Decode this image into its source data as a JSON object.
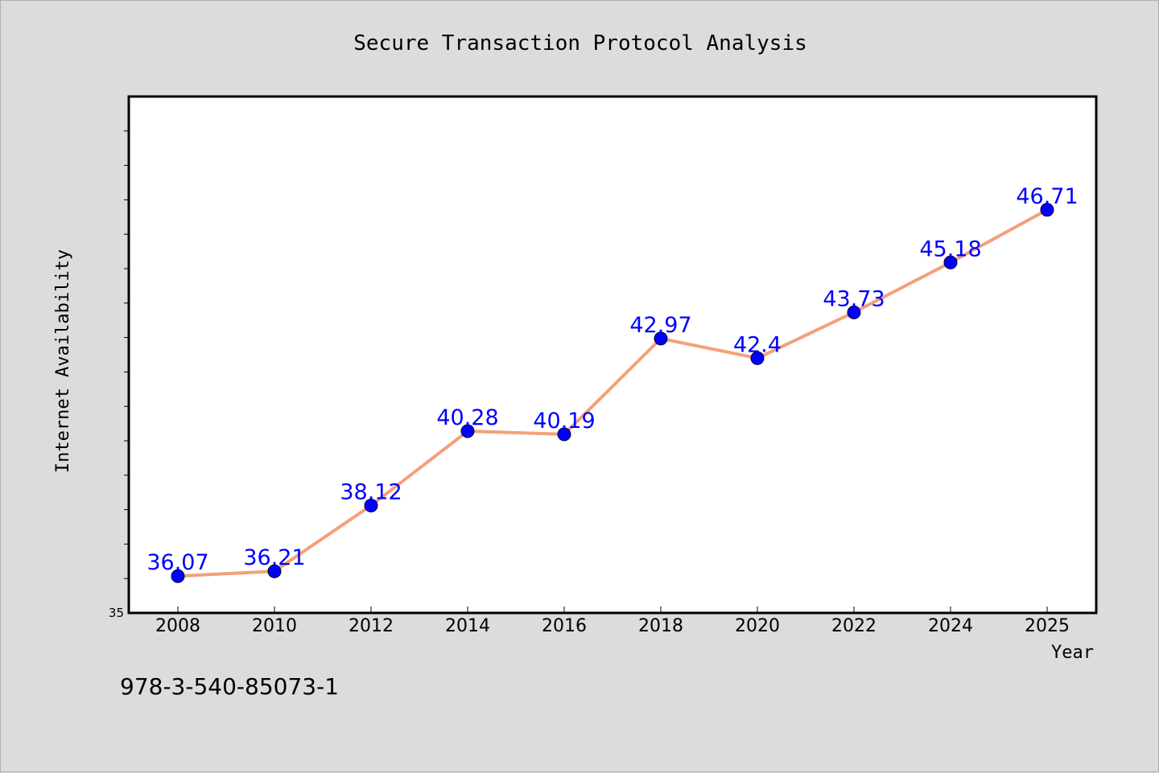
{
  "chart_data": {
    "type": "line",
    "title": "Secure Transaction Protocol Analysis",
    "xlabel": "Year",
    "ylabel": "Internet Availability",
    "categories": [
      "2008",
      "2010",
      "2012",
      "2014",
      "2016",
      "2018",
      "2020",
      "2022",
      "2024",
      "2025"
    ],
    "series": [
      {
        "values": [
          36.07,
          36.21,
          38.12,
          40.28,
          40.19,
          42.97,
          42.4,
          43.73,
          45.18,
          46.71
        ],
        "labels": [
          "36.07",
          "36.21",
          "38.12",
          "40.28",
          "40.19",
          "42.97",
          "42.4",
          "43.73",
          "45.18",
          "46.71"
        ],
        "line_color": "#f4a07a",
        "marker_color": "#0000ff"
      }
    ],
    "ylim": [
      35,
      50
    ],
    "ytick_labels": [
      "35"
    ],
    "grid": false,
    "legend": "none"
  },
  "footer": {
    "isbn": "978-3-540-85073-1"
  },
  "colors": {
    "background": "#dcdcdc",
    "plot_area": "#ffffff",
    "line": "#f4a07a",
    "markers": "#0000ff",
    "data_labels": "#0000ff"
  }
}
